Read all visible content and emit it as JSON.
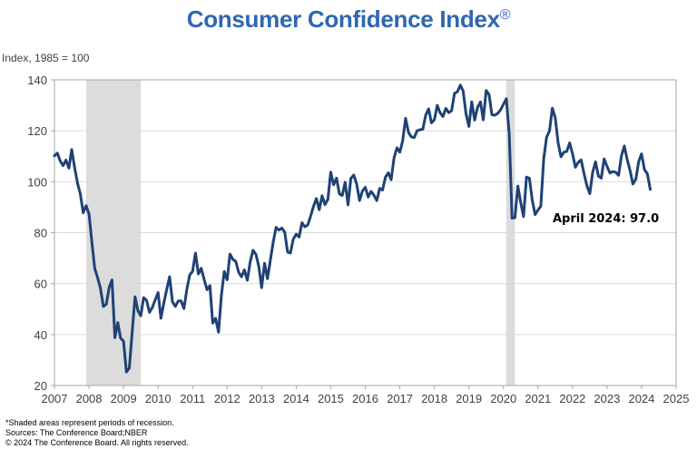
{
  "chart_data": {
    "type": "line",
    "title": "Consumer Confidence Index",
    "title_mark": "®",
    "ylabel": "Index, 1985 = 100",
    "xlabel": "",
    "xlim": [
      2007,
      2025
    ],
    "ylim": [
      20,
      140
    ],
    "x_ticks": [
      "2007",
      "2008",
      "2009",
      "2010",
      "2011",
      "2012",
      "2013",
      "2014",
      "2015",
      "2016",
      "2017",
      "2018",
      "2019",
      "2020",
      "2021",
      "2022",
      "2023",
      "2024",
      "2025"
    ],
    "y_ticks": [
      20,
      40,
      60,
      80,
      100,
      120,
      140
    ],
    "grid": "horizontal",
    "line_color": "#1f4275",
    "recession_color": "#dcdcdc",
    "recessions": [
      [
        2007.92,
        2009.5
      ],
      [
        2020.08,
        2020.33
      ]
    ],
    "annotation": "April 2024: 97.0",
    "series": [
      {
        "name": "Consumer Confidence Index",
        "start": 2007.0,
        "step_months": 1,
        "values": [
          110.2,
          111.2,
          108.2,
          106.3,
          108.5,
          105.3,
          112.6,
          105.6,
          99.5,
          95.2,
          87.8,
          90.6,
          87.3,
          76.4,
          65.9,
          62.3,
          58.1,
          51.0,
          51.9,
          58.5,
          61.4,
          38.8,
          44.7,
          38.6,
          37.4,
          25.3,
          26.9,
          40.8,
          54.8,
          49.3,
          47.4,
          54.5,
          53.4,
          48.7,
          50.6,
          53.6,
          56.5,
          46.4,
          52.3,
          57.7,
          62.7,
          52.9,
          51.0,
          53.2,
          53.2,
          50.2,
          57.8,
          63.4,
          64.8,
          72.0,
          63.8,
          66.0,
          61.7,
          57.6,
          59.2,
          44.5,
          46.4,
          40.9,
          55.2,
          64.8,
          61.5,
          71.6,
          69.5,
          68.7,
          64.4,
          62.7,
          65.4,
          61.3,
          68.4,
          73.1,
          71.5,
          66.7,
          58.4,
          68.0,
          61.9,
          69.0,
          76.2,
          82.1,
          81.0,
          81.8,
          80.2,
          72.4,
          72.0,
          77.5,
          79.4,
          78.3,
          83.9,
          82.3,
          83.0,
          86.4,
          90.3,
          93.4,
          89.0,
          94.5,
          91.0,
          93.1,
          103.8,
          98.8,
          101.4,
          95.2,
          94.6,
          99.8,
          90.9,
          101.3,
          102.6,
          99.1,
          92.6,
          96.3,
          97.8,
          94.0,
          96.2,
          94.7,
          92.6,
          97.4,
          96.7,
          101.8,
          103.5,
          100.8,
          109.4,
          113.3,
          111.6,
          116.1,
          124.9,
          119.4,
          117.6,
          117.3,
          120.0,
          120.4,
          120.6,
          126.2,
          128.6,
          123.1,
          124.3,
          130.0,
          127.0,
          125.6,
          128.8,
          127.1,
          127.9,
          134.7,
          135.3,
          137.9,
          135.7,
          126.6,
          121.7,
          131.4,
          124.2,
          129.2,
          131.3,
          124.3,
          135.8,
          134.2,
          126.3,
          126.1,
          126.8,
          128.2,
          130.4,
          132.6,
          118.8,
          85.7,
          85.9,
          98.3,
          91.7,
          86.3,
          101.8,
          101.4,
          92.9,
          87.1,
          88.9,
          90.4,
          109.0,
          117.5,
          120.0,
          128.9,
          125.1,
          115.2,
          109.8,
          111.6,
          111.9,
          115.2,
          111.1,
          105.7,
          107.6,
          108.6,
          103.2,
          98.4,
          95.3,
          103.6,
          107.8,
          102.2,
          101.4,
          109.0,
          106.0,
          103.4,
          104.0,
          103.7,
          102.5,
          110.1,
          114.0,
          108.7,
          104.3,
          99.1,
          101.0,
          108.0,
          110.9,
          104.8,
          103.1,
          97.0
        ]
      }
    ]
  },
  "footnotes": [
    "*Shaded areas represent periods of recession.",
    "Sources: The Conference Board;NBER",
    "© 2024 The Conference Board. All rights reserved."
  ]
}
